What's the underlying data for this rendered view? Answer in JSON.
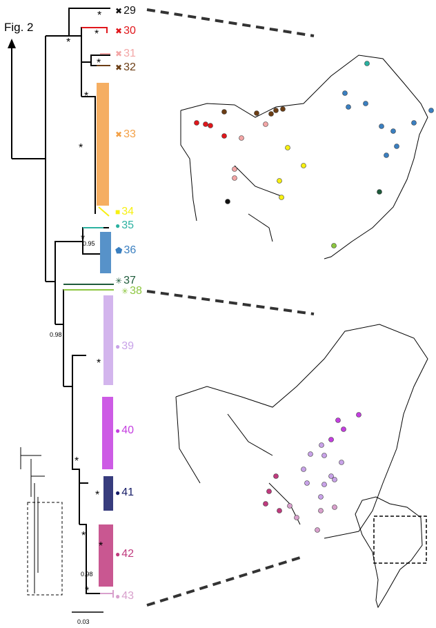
{
  "figure_label": "Fig. 2",
  "scale_bar_label": "0.03",
  "clades": [
    {
      "number": "29",
      "color": "#111111",
      "marker": "x"
    },
    {
      "number": "30",
      "color": "#e0161b",
      "marker": "x"
    },
    {
      "number": "31",
      "color": "#f3a6a6",
      "marker": "x"
    },
    {
      "number": "32",
      "color": "#6b3d14",
      "marker": "x"
    },
    {
      "number": "33",
      "color": "#f3a046",
      "marker": "x"
    },
    {
      "number": "34",
      "color": "#f7f011",
      "marker": "square"
    },
    {
      "number": "35",
      "color": "#2ab1a0",
      "marker": "circle"
    },
    {
      "number": "36",
      "color": "#3a7fc0",
      "marker": "pentagon"
    },
    {
      "number": "37",
      "color": "#1d5a3a",
      "marker": "asterisk"
    },
    {
      "number": "38",
      "color": "#8cc63f",
      "marker": "asterisk"
    },
    {
      "number": "39",
      "color": "#c8a2e8",
      "marker": "circle"
    },
    {
      "number": "40",
      "color": "#c43ee0",
      "marker": "circle"
    },
    {
      "number": "41",
      "color": "#141a66",
      "marker": "circle"
    },
    {
      "number": "42",
      "color": "#c03a7e",
      "marker": "circle"
    },
    {
      "number": "43",
      "color": "#d8a0cc",
      "marker": "circle"
    }
  ],
  "support_values": [
    "0.95",
    "0.98",
    "0.98"
  ],
  "support_star": "*"
}
